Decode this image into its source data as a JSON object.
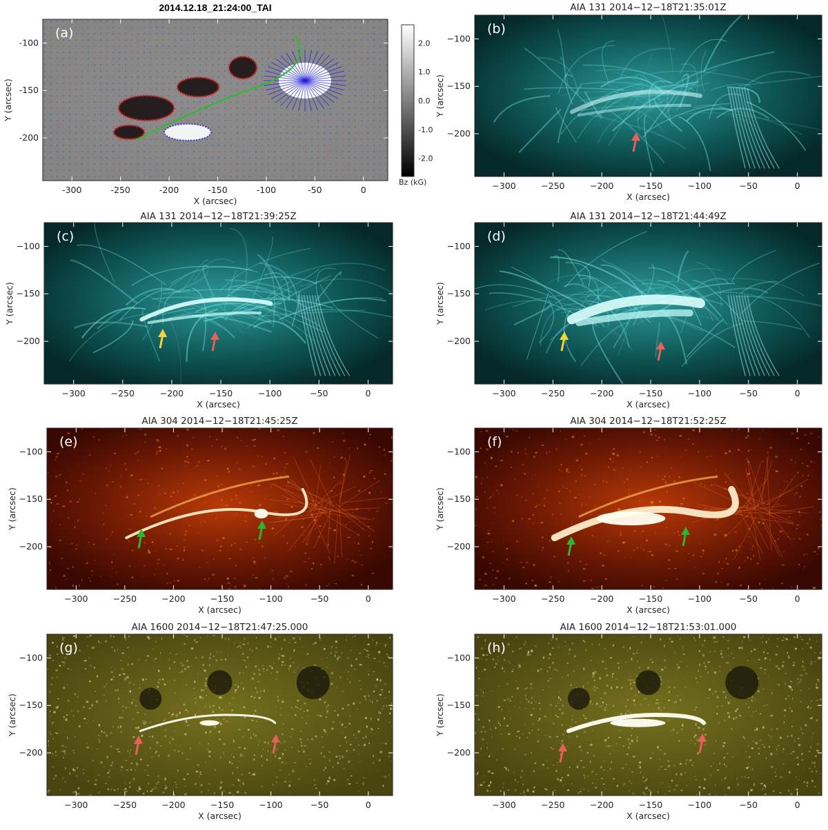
{
  "panels": [
    {
      "id": "a",
      "label": "(a)",
      "title": "2014.12.18_21:24:00_TAI",
      "theme": "hmi",
      "xticks": [
        "-300",
        "-250",
        "-200",
        "-150",
        "-100",
        "-50",
        "0"
      ],
      "yticks": [
        "-100",
        "-150",
        "-200"
      ],
      "xlabel": "X (arcsec)",
      "ylabel": "Y (arcsec)",
      "colorbar": {
        "ticks": [
          "2.0",
          "1.0",
          "0.0",
          "-1.0",
          "-2.0"
        ],
        "label": "Bz (kG)"
      },
      "arrows": []
    },
    {
      "id": "b",
      "label": "(b)",
      "title": "AIA 131  2014−12−18T21:35:01Z",
      "theme": "131",
      "xticks": [
        "−300",
        "−250",
        "−200",
        "−150",
        "−100",
        "−50",
        "0"
      ],
      "yticks": [
        "−100",
        "−150",
        "−200"
      ],
      "xlabel": "X (arcsec)",
      "ylabel": "Y (arcsec)",
      "arrows": [
        {
          "color": "red"
        }
      ]
    },
    {
      "id": "c",
      "label": "(c)",
      "title": "AIA 131  2014−12−18T21:39:25Z",
      "theme": "131",
      "xticks": [
        "−300",
        "−250",
        "−200",
        "−150",
        "−100",
        "−50",
        "0"
      ],
      "yticks": [
        "−100",
        "−150",
        "−200"
      ],
      "xlabel": "X (arcsec)",
      "ylabel": "Y (arcsec)",
      "arrows": [
        {
          "color": "yellow"
        },
        {
          "color": "red"
        }
      ]
    },
    {
      "id": "d",
      "label": "(d)",
      "title": "AIA 131  2014−12−18T21:44:49Z",
      "theme": "131",
      "xticks": [
        "−300",
        "−250",
        "−200",
        "−150",
        "−100",
        "−50",
        "0"
      ],
      "yticks": [
        "−100",
        "−150",
        "−200"
      ],
      "xlabel": "X (arcsec)",
      "ylabel": "Y (arcsec)",
      "arrows": [
        {
          "color": "yellow"
        },
        {
          "color": "red"
        }
      ]
    },
    {
      "id": "e",
      "label": "(e)",
      "title": "AIA 304  2014−12−18T21:45:25Z",
      "theme": "304",
      "xticks": [
        "−300",
        "−250",
        "−200",
        "−150",
        "−100",
        "−50",
        "0"
      ],
      "yticks": [
        "−100",
        "−150",
        "−200"
      ],
      "xlabel": "X (arcsec)",
      "ylabel": "Y (arcsec)",
      "arrows": [
        {
          "color": "green"
        },
        {
          "color": "green"
        }
      ]
    },
    {
      "id": "f",
      "label": "(f)",
      "title": "AIA 304  2014−12−18T21:52:25Z",
      "theme": "304",
      "xticks": [
        "−300",
        "−250",
        "−200",
        "−150",
        "−100",
        "−50",
        "0"
      ],
      "yticks": [
        "−100",
        "−150",
        "−200"
      ],
      "xlabel": "X (arcsec)",
      "ylabel": "Y (arcsec)",
      "arrows": [
        {
          "color": "green"
        },
        {
          "color": "green"
        }
      ]
    },
    {
      "id": "g",
      "label": "(g)",
      "title": "AIA 1600  2014−12−18T21:47:25.000",
      "theme": "1600",
      "xticks": [
        "−300",
        "−250",
        "−200",
        "−150",
        "−100",
        "−50",
        "0"
      ],
      "yticks": [
        "−100",
        "−150",
        "−200"
      ],
      "xlabel": "X (arcsec)",
      "ylabel": "Y (arcsec)",
      "arrows": [
        {
          "color": "red"
        },
        {
          "color": "red"
        }
      ]
    },
    {
      "id": "h",
      "label": "(h)",
      "title": "AIA 1600  2014−12−18T21:53:01.000",
      "theme": "1600",
      "xticks": [
        "−300",
        "−250",
        "−200",
        "−150",
        "−100",
        "−50",
        "0"
      ],
      "yticks": [
        "−100",
        "−150",
        "−200"
      ],
      "xlabel": "X (arcsec)",
      "ylabel": "Y (arcsec)",
      "arrows": [
        {
          "color": "red"
        },
        {
          "color": "red"
        }
      ]
    }
  ],
  "colors": {
    "red": "#e8605a",
    "yellow": "#f2d33a",
    "green": "#2fb52f"
  }
}
